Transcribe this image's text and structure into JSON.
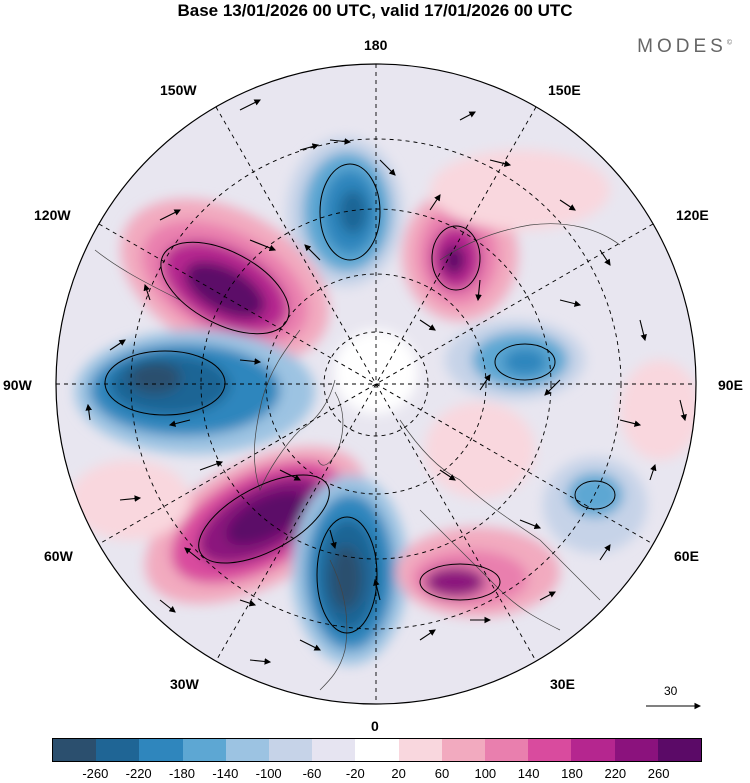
{
  "title": "Base 13/01/2026 00 UTC, valid 17/01/2026 00 UTC",
  "logo": "MODES",
  "logo_mark": "©",
  "longitude_labels": {
    "l180": "180",
    "l150w": "150W",
    "l150e": "150E",
    "l120w": "120W",
    "l120e": "120E",
    "l90w": "90W",
    "l90e": "90E",
    "l60w": "60W",
    "l60e": "60E",
    "l30w": "30W",
    "l30e": "30E",
    "l0": "0"
  },
  "wind_scale_label": "30",
  "colorbar": {
    "colors": [
      "#2b4f6e",
      "#1f6595",
      "#2f86bd",
      "#5da7d3",
      "#9cc3e2",
      "#c6d3e8",
      "#e6e4f1",
      "#ffffff",
      "#f9d7de",
      "#f2aabf",
      "#e97fae",
      "#d94b9e",
      "#b5268f",
      "#8b127d",
      "#5b0a67"
    ],
    "ticks": [
      "-260",
      "-220",
      "-180",
      "-140",
      "-100",
      "-60",
      "-20",
      "20",
      "60",
      "100",
      "140",
      "180",
      "220",
      "260"
    ]
  },
  "anomaly_centers": [
    {
      "lon": -180,
      "lat": 62,
      "value": -240
    },
    {
      "lon": 155,
      "lat": 55,
      "value": 270
    },
    {
      "lon": -125,
      "lat": 55,
      "value": 260
    },
    {
      "lon": -90,
      "lat": 45,
      "value": -250
    },
    {
      "lon": -55,
      "lat": 45,
      "value": 270
    },
    {
      "lon": -10,
      "lat": 55,
      "value": -260
    },
    {
      "lon": 40,
      "lat": 45,
      "value": 200
    },
    {
      "lon": 95,
      "lat": 65,
      "value": -140
    },
    {
      "lon": 62,
      "lat": 38,
      "value": -120
    }
  ]
}
